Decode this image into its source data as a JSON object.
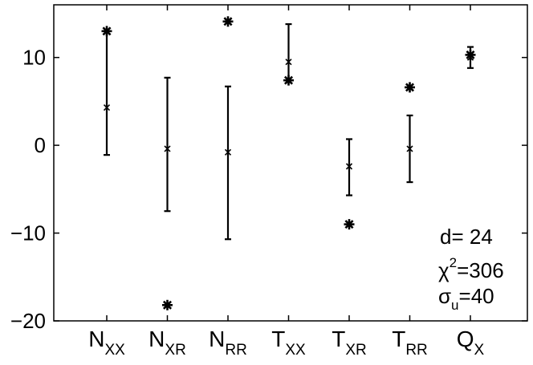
{
  "chart_data": {
    "type": "errorbar",
    "categories": [
      {
        "main": "N",
        "sub": "XX"
      },
      {
        "main": "N",
        "sub": "XR"
      },
      {
        "main": "N",
        "sub": "RR"
      },
      {
        "main": "T",
        "sub": "XX"
      },
      {
        "main": "T",
        "sub": "XR"
      },
      {
        "main": "T",
        "sub": "RR"
      },
      {
        "main": "Q",
        "sub": "X"
      }
    ],
    "center": [
      4.3,
      -0.4,
      -0.8,
      9.5,
      -2.4,
      -0.4,
      10.0
    ],
    "lower": [
      -1.1,
      -7.5,
      -10.7,
      7.4,
      -5.7,
      -4.2,
      8.8
    ],
    "upper": [
      13.0,
      7.7,
      6.7,
      13.8,
      0.7,
      3.4,
      11.2
    ],
    "stars": [
      13.0,
      -18.2,
      14.1,
      7.4,
      -9.0,
      6.6,
      10.3
    ],
    "ylim": [
      -20,
      16
    ],
    "yticks": [
      -20,
      -10,
      0,
      10
    ],
    "ytick_labels": [
      "−20",
      "−10",
      "0",
      "10"
    ],
    "grid": false
  },
  "annotations": {
    "d_label": "d= 24",
    "chi_symbol": "χ",
    "chi_sup": "2",
    "chi_value": "=306",
    "sigma_symbol": "σ",
    "sigma_sub": "u",
    "sigma_value": "=40"
  }
}
